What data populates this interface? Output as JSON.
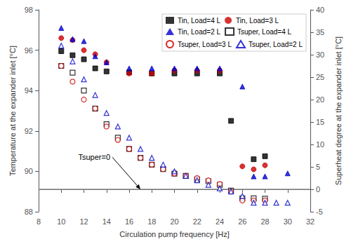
{
  "chart_data": {
    "type": "scatter",
    "x_label": "Circulation pump frequency [Hz]",
    "y_label": "Temperature at the expander inlet [°C]",
    "y2_label": "Superheat degree at the expander inlet [°C]",
    "xlim": [
      8,
      32
    ],
    "xticks": [
      8,
      10,
      12,
      14,
      16,
      18,
      20,
      22,
      24,
      26,
      28,
      30,
      32
    ],
    "ylim": [
      88,
      98
    ],
    "yticks": [
      88,
      90,
      92,
      94,
      96,
      98
    ],
    "y2lim": [
      -5,
      40
    ],
    "y2ticks": [
      -5,
      0,
      5,
      10,
      15,
      20,
      25,
      30,
      35,
      40
    ],
    "grid": false,
    "legend": "upper right",
    "series": [
      {
        "name": "Tin, Load=4 L",
        "color": "#000000",
        "marker": "square",
        "x": [
          10,
          11,
          12,
          13,
          14,
          16,
          18,
          20,
          22,
          24,
          25,
          27,
          28
        ],
        "values": [
          95.95,
          95.75,
          95.55,
          95.1,
          94.95,
          94.9,
          94.85,
          94.85,
          94.85,
          94.85,
          92.5,
          90.6,
          90.75
        ]
      },
      {
        "name": "Tin, Load=3 L",
        "color": "#cc0000",
        "marker": "circle",
        "x": [
          10,
          11,
          12,
          13,
          14,
          16,
          18,
          20,
          22,
          24,
          26,
          27,
          28
        ],
        "values": [
          96.6,
          96.5,
          96.0,
          95.8,
          95.4,
          94.85,
          94.85,
          95.0,
          95.0,
          95.0,
          90.25,
          90.1,
          90.3
        ]
      },
      {
        "name": "Tin, Load=2 L",
        "color": "#0000cc",
        "marker": "triangle",
        "x": [
          10,
          11,
          12,
          13,
          14,
          16,
          18,
          20,
          22,
          24,
          26,
          27,
          28,
          30
        ],
        "values": [
          97.1,
          96.55,
          96.45,
          95.7,
          95.4,
          95.1,
          95.1,
          95.1,
          95.1,
          95.1,
          94.2,
          89.75,
          89.75,
          89.9
        ]
      },
      {
        "name": "Tsuper, Load=4 L",
        "color": "#000000",
        "marker": "square-open",
        "axis": "y2",
        "x": [
          10,
          11,
          12,
          13,
          14,
          15,
          16,
          17,
          18,
          19,
          20,
          21,
          22,
          23,
          24,
          25,
          26,
          27,
          28
        ],
        "values": [
          27.5,
          26.0,
          22.0,
          18.0,
          14.5,
          11.5,
          9.0,
          7.0,
          5.5,
          4.5,
          3.5,
          3.0,
          2.2,
          1.8,
          1.0,
          -0.3,
          -2.0,
          -2.0,
          -2.1
        ]
      },
      {
        "name": "Tsuper, Load=3 L",
        "color": "#cc0000",
        "marker": "circle-open",
        "axis": "y2",
        "x": [
          10,
          11,
          12,
          13,
          14,
          15,
          16,
          17,
          18,
          19,
          20,
          21,
          22,
          23,
          24,
          25,
          26,
          27,
          28
        ],
        "values": [
          27.5,
          24.0,
          20.0,
          18.0,
          14.0,
          11.0,
          9.0,
          7.0,
          5.5,
          4.5,
          3.5,
          3.0,
          2.5,
          2.0,
          1.2,
          -0.5,
          -2.5,
          -2.5,
          -2.5
        ]
      },
      {
        "name": "Tsuper, Load=2 L",
        "color": "#0000cc",
        "marker": "triangle-open",
        "axis": "y2",
        "x": [
          10,
          11,
          12,
          13,
          14,
          15,
          16,
          17,
          18,
          19,
          20,
          21,
          22,
          23,
          24,
          25,
          26,
          27,
          28,
          29,
          30
        ],
        "values": [
          32.0,
          28.5,
          24.5,
          21.0,
          17.0,
          14.0,
          11.5,
          9.0,
          7.0,
          5.5,
          4.0,
          3.0,
          2.0,
          1.0,
          0.2,
          -0.5,
          -1.5,
          -3.0,
          -3.0,
          -3.0,
          -3.0
        ]
      }
    ],
    "reference_lines": [
      {
        "axis": "y2",
        "value": 0,
        "color": "#888888"
      }
    ],
    "annotations": [
      {
        "text": "Tsuper=0",
        "x": 17.0,
        "y": 0,
        "axis": "y2",
        "text_x": 11.5,
        "text_y": 90.7
      }
    ]
  }
}
